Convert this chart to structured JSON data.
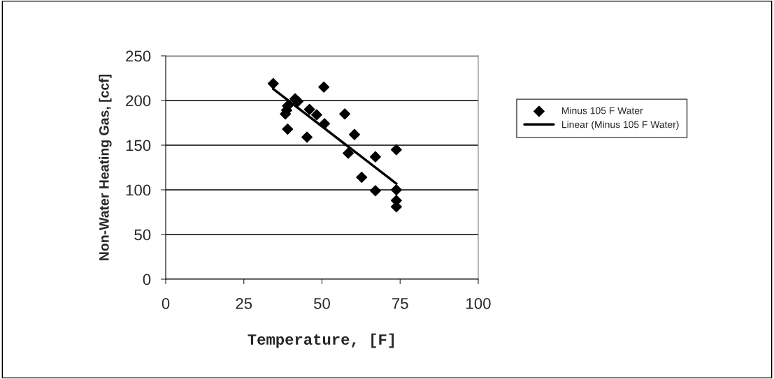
{
  "chart_data": {
    "type": "scatter",
    "xlabel": "Temperature, [F]",
    "ylabel": "Non-Water Heating Gas, [ccf]",
    "xlim": [
      0,
      100
    ],
    "xticks": [
      0,
      25,
      50,
      75,
      100
    ],
    "ylim": [
      0,
      250
    ],
    "yticks": [
      0,
      50,
      100,
      150,
      200,
      250
    ],
    "grid": "y",
    "legend": "right",
    "series": [
      {
        "name": "Minus 105 F Water",
        "marker": "diamond",
        "color": "#000000",
        "x": [
          34.4,
          50.6,
          41.4,
          42.3,
          39,
          38.7,
          38.3,
          46,
          48.3,
          50.8,
          39,
          45.2,
          57.3,
          60.4,
          58.4,
          62.7,
          67.1,
          73.8,
          67.1,
          73.8,
          73.8,
          73.8
        ],
        "values": [
          219,
          215,
          202,
          199,
          194,
          189,
          185,
          190,
          184,
          174,
          168,
          159,
          185,
          162,
          141,
          114,
          137,
          145,
          99,
          100,
          88,
          81
        ]
      },
      {
        "name": "Linear (Minus 105 F Water)",
        "type": "line",
        "color": "#000000",
        "x": [
          34.4,
          73.8
        ],
        "values": [
          213,
          107
        ],
        "line_style": "solid"
      }
    ]
  }
}
